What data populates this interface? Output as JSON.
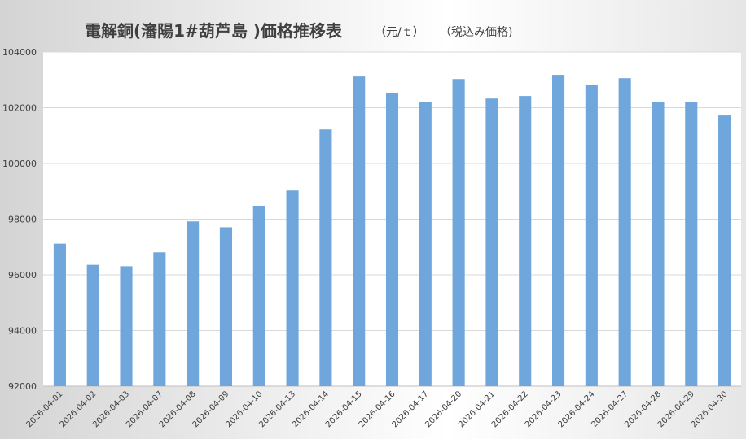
{
  "title": {
    "main": "電解銅(瀋陽1#葫芦島 )価格推移表",
    "unit": "（元/ｔ）",
    "note": "（税込み価格)"
  },
  "colors": {
    "bar": "#6fa6dc",
    "grid": "#d9d9d9",
    "plot_bg": "#ffffff",
    "axis": "#bfbfbf"
  },
  "chart_data": {
    "type": "bar",
    "title": "電解銅(瀋陽1#葫芦島 )価格推移表",
    "xlabel": "",
    "ylabel": "",
    "ylim": [
      92000,
      104000
    ],
    "yticks": [
      92000,
      94000,
      96000,
      98000,
      100000,
      102000,
      104000
    ],
    "grid": true,
    "legend": "none",
    "categories": [
      "2026-04-01",
      "2026-04-02",
      "2026-04-03",
      "2026-04-07",
      "2026-04-08",
      "2026-04-09",
      "2026-04-10",
      "2026-04-13",
      "2026-04-14",
      "2026-04-15",
      "2026-04-16",
      "2026-04-17",
      "2026-04-20",
      "2026-04-21",
      "2026-04-22",
      "2026-04-23",
      "2026-04-24",
      "2026-04-27",
      "2026-04-28",
      "2026-04-29",
      "2026-04-30"
    ],
    "values": [
      97120,
      96360,
      96310,
      96810,
      97920,
      97710,
      98480,
      99030,
      101220,
      103120,
      102540,
      102190,
      103030,
      102330,
      102420,
      103180,
      102820,
      103060,
      102220,
      102210,
      101720
    ]
  }
}
